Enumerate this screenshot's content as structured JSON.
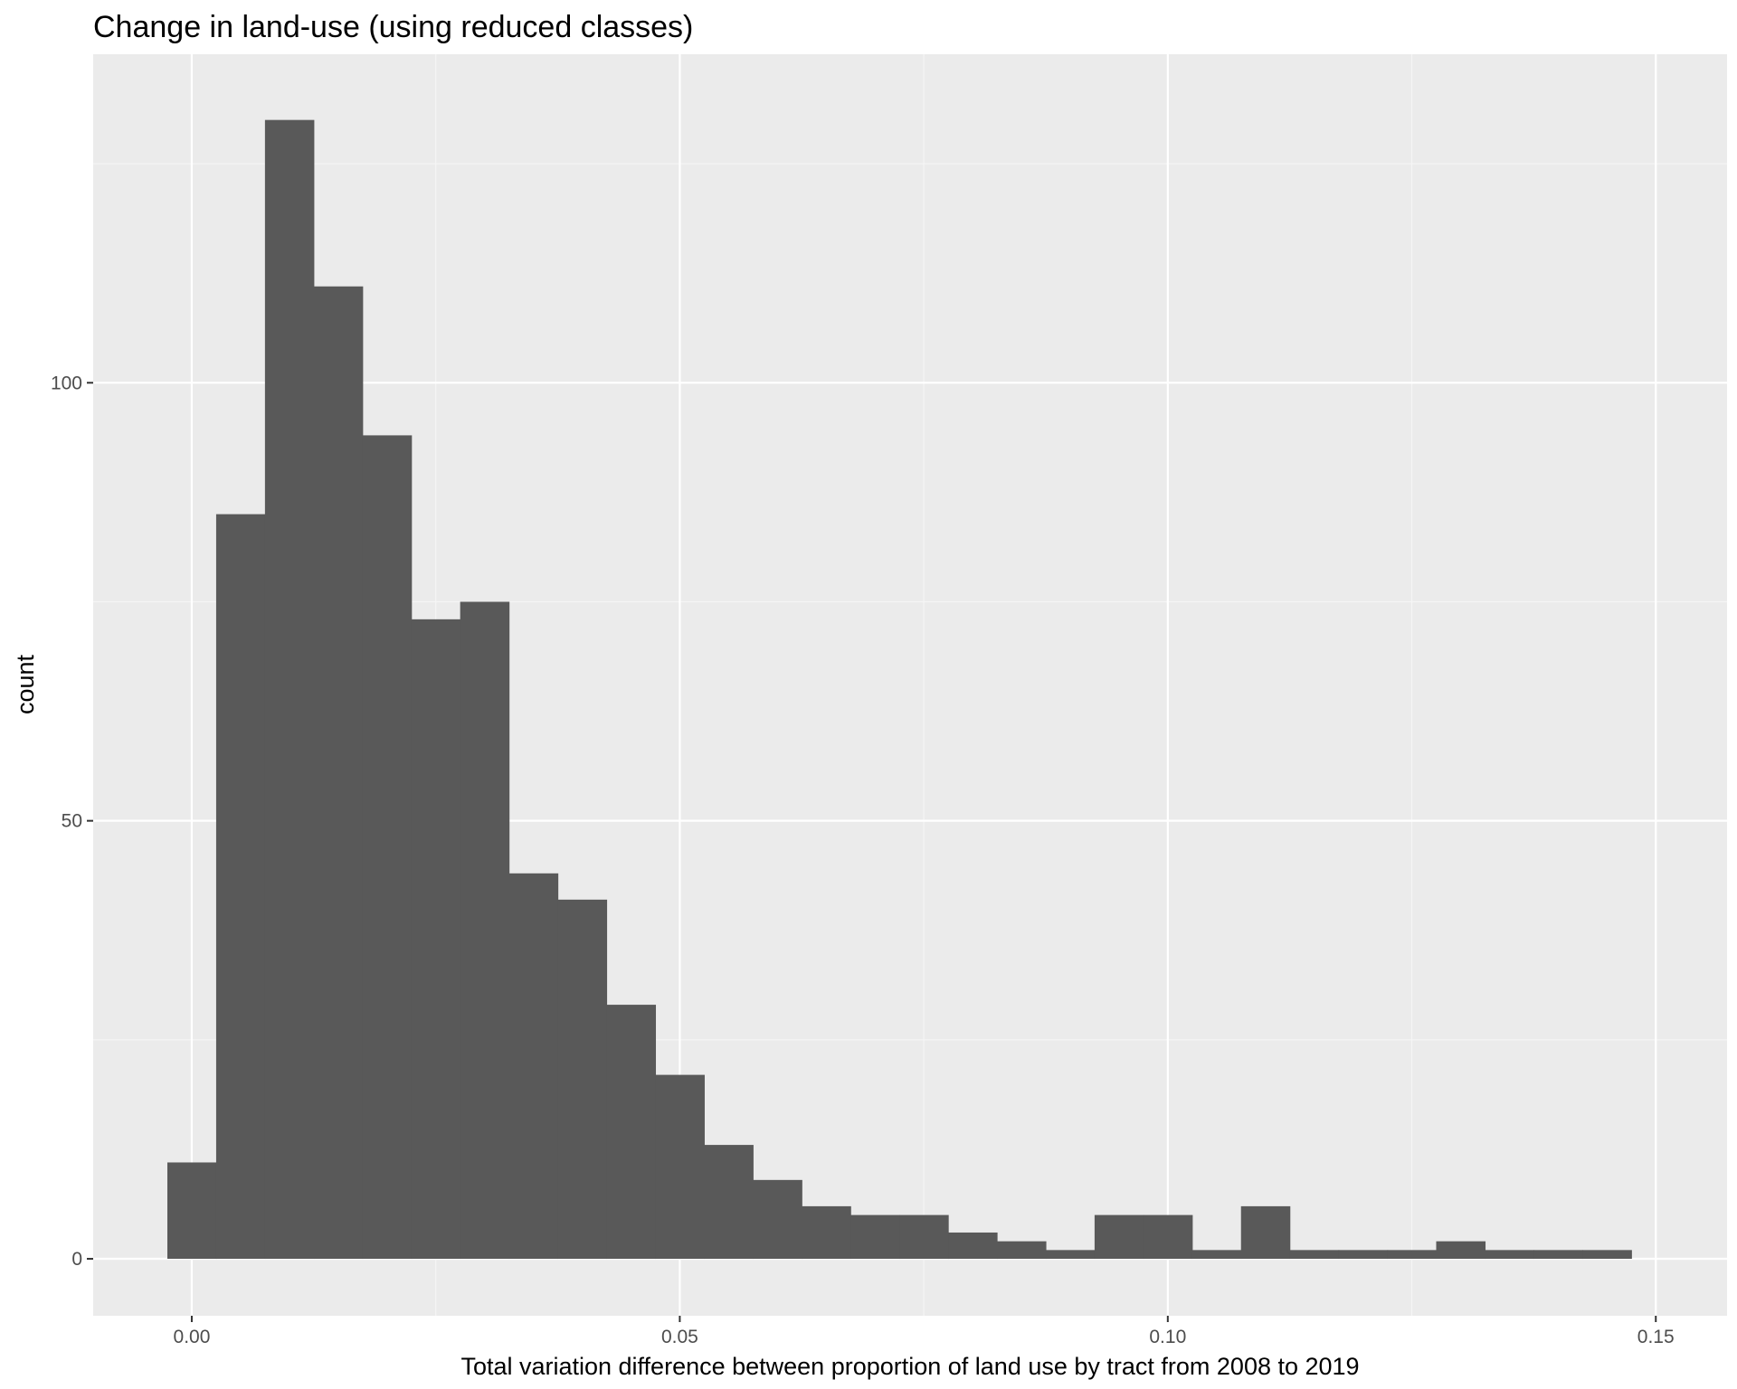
{
  "chart_data": {
    "type": "bar",
    "title": "Change in land-use (using reduced classes)",
    "xlabel": "Total variation difference between proportion of land use by tract from 2008 to 2019",
    "ylabel": "count",
    "xlim": [
      -0.0101,
      0.1573
    ],
    "ylim": [
      -6.5,
      137.5
    ],
    "x_major_ticks": [
      0.0,
      0.05,
      0.1,
      0.15
    ],
    "x_tick_labels": [
      "0.00",
      "0.05",
      "0.10",
      "0.15"
    ],
    "x_minor_ticks": [
      0.025,
      0.075,
      0.125
    ],
    "y_major_ticks": [
      0,
      50,
      100
    ],
    "y_tick_labels": [
      "0",
      "50",
      "100"
    ],
    "y_minor_ticks": [
      25,
      75,
      125
    ],
    "grid": true,
    "bin_width": 0.005,
    "bin_centers": [
      0.0,
      0.005,
      0.01,
      0.015,
      0.02,
      0.025,
      0.03,
      0.035,
      0.04,
      0.045,
      0.05,
      0.055,
      0.06,
      0.065,
      0.07,
      0.075,
      0.08,
      0.085,
      0.09,
      0.095,
      0.1,
      0.105,
      0.11,
      0.115,
      0.12,
      0.125,
      0.13,
      0.135,
      0.14,
      0.145
    ],
    "values": [
      11,
      85,
      130,
      111,
      94,
      73,
      75,
      44,
      41,
      29,
      21,
      13,
      9,
      6,
      5,
      5,
      3,
      2,
      1,
      5,
      5,
      1,
      6,
      1,
      1,
      1,
      2,
      1,
      1,
      1
    ],
    "bar_color": "#595959"
  },
  "colors": {
    "panel_background": "#ebebeb",
    "grid_major": "#ffffff",
    "grid_minor": "#f5f5f5",
    "tick_color": "#333333",
    "tick_label": "#4d4d4d",
    "bar_fill": "#595959"
  }
}
